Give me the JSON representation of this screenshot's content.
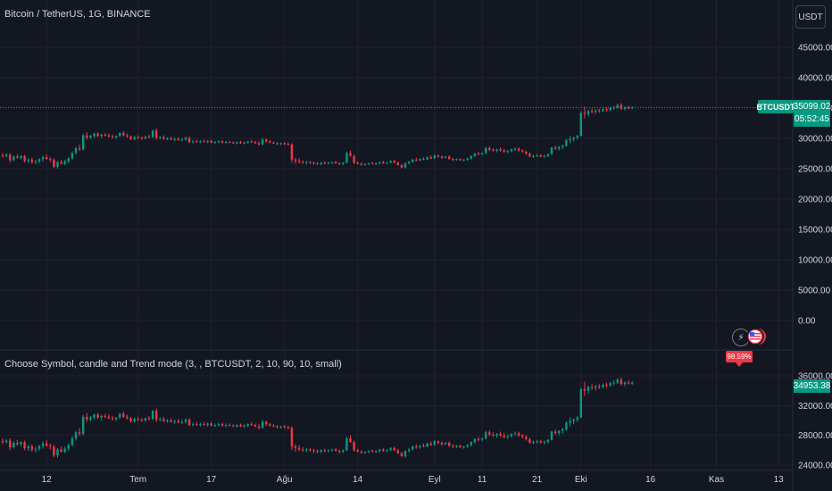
{
  "header": {
    "title": "Bitcoin / TetherUS, 1G, BINANCE",
    "currency_button": "USDT"
  },
  "price_tag": {
    "symbol": "BTCUSDT",
    "price": "35099.02",
    "countdown": "05:52:45"
  },
  "indicator": {
    "title": "Choose Symbol, candle and Trend mode (3, , BTCUSDT, 2, 10, 90, 10, small)",
    "value_tag": "34953.38",
    "percent_label": "98.59%"
  },
  "icons": {
    "flash": "lightning-icon",
    "flag": "us-flag-icon"
  },
  "colors": {
    "background": "#131722",
    "up": "#089981",
    "down": "#f23645",
    "grid": "#1f222c"
  },
  "chart_data": [
    {
      "type": "candlestick",
      "title": "Bitcoin / TetherUS, 1G, BINANCE",
      "ylim": [
        0,
        45000
      ],
      "y_ticks": [
        "45000.00",
        "40000.00",
        "35000.00",
        "30000.00",
        "25000.00",
        "20000.00",
        "15000.00",
        "10000.00",
        "5000.00",
        "0.00"
      ],
      "y_tick_values": [
        45000,
        40000,
        35000,
        30000,
        25000,
        20000,
        15000,
        10000,
        5000,
        0
      ],
      "last_price": 35099.02,
      "grid": true,
      "ohlc": [
        [
          27200,
          27600,
          26800,
          27100
        ],
        [
          27100,
          27500,
          26900,
          27300
        ],
        [
          27300,
          27600,
          26000,
          26400
        ],
        [
          26400,
          27200,
          26200,
          27000
        ],
        [
          27000,
          27400,
          26600,
          26800
        ],
        [
          26800,
          27200,
          26500,
          27100
        ],
        [
          27100,
          27300,
          26000,
          26300
        ],
        [
          26300,
          26700,
          25900,
          26500
        ],
        [
          26500,
          26800,
          25800,
          26100
        ],
        [
          26100,
          26500,
          25700,
          26200
        ],
        [
          26200,
          26700,
          25900,
          26600
        ],
        [
          26600,
          27200,
          26200,
          26900
        ],
        [
          26900,
          27400,
          26500,
          26600
        ],
        [
          26600,
          26900,
          26100,
          26500
        ],
        [
          26500,
          26700,
          25100,
          25300
        ],
        [
          25300,
          26300,
          25000,
          26100
        ],
        [
          26100,
          26500,
          25700,
          25800
        ],
        [
          25800,
          26500,
          25600,
          26200
        ],
        [
          26200,
          26900,
          25900,
          26700
        ],
        [
          26700,
          27900,
          26500,
          27600
        ],
        [
          27600,
          28600,
          27300,
          28400
        ],
        [
          28400,
          29000,
          27900,
          28200
        ],
        [
          28200,
          30800,
          28000,
          30500
        ],
        [
          30500,
          31000,
          29800,
          30100
        ],
        [
          30100,
          30600,
          29900,
          30400
        ],
        [
          30400,
          30900,
          30100,
          30800
        ],
        [
          30800,
          31000,
          30200,
          30400
        ],
        [
          30400,
          30800,
          30000,
          30600
        ],
        [
          30600,
          30900,
          30300,
          30500
        ],
        [
          30500,
          30800,
          30200,
          30300
        ],
        [
          30300,
          30600,
          30000,
          30200
        ],
        [
          30200,
          30500,
          29900,
          30400
        ],
        [
          30400,
          31000,
          30200,
          30900
        ],
        [
          30900,
          31200,
          30300,
          30500
        ],
        [
          30500,
          30800,
          30100,
          30300
        ],
        [
          30300,
          30500,
          29700,
          29900
        ],
        [
          29900,
          30400,
          29700,
          30200
        ],
        [
          30200,
          30500,
          29900,
          30100
        ],
        [
          30100,
          30300,
          29800,
          30000
        ],
        [
          30000,
          30400,
          29800,
          30300
        ],
        [
          30300,
          30600,
          30000,
          30200
        ],
        [
          30200,
          31400,
          30100,
          31300
        ],
        [
          31300,
          31600,
          29800,
          30100
        ],
        [
          30100,
          30400,
          29900,
          30200
        ],
        [
          30200,
          30500,
          29800,
          29900
        ],
        [
          29900,
          30200,
          29700,
          30000
        ],
        [
          30000,
          30300,
          29700,
          29800
        ],
        [
          29800,
          30100,
          29500,
          29900
        ],
        [
          29900,
          30200,
          29600,
          29700
        ],
        [
          29700,
          30100,
          29500,
          29800
        ],
        [
          29800,
          30300,
          29600,
          30100
        ],
        [
          30100,
          30300,
          29200,
          29400
        ],
        [
          29400,
          29700,
          29200,
          29500
        ],
        [
          29500,
          29800,
          29300,
          29400
        ],
        [
          29400,
          29700,
          29200,
          29500
        ],
        [
          29500,
          29800,
          29300,
          29400
        ],
        [
          29400,
          29700,
          29200,
          29600
        ],
        [
          29600,
          29800,
          29200,
          29300
        ],
        [
          29300,
          29600,
          29100,
          29400
        ],
        [
          29400,
          29700,
          29200,
          29500
        ],
        [
          29500,
          29700,
          29200,
          29300
        ],
        [
          29300,
          29600,
          29100,
          29400
        ],
        [
          29400,
          29600,
          29200,
          29300
        ],
        [
          29300,
          29500,
          29100,
          29200
        ],
        [
          29200,
          29500,
          29000,
          29400
        ],
        [
          29400,
          29600,
          29100,
          29200
        ],
        [
          29200,
          29500,
          29000,
          29300
        ],
        [
          29300,
          29600,
          29100,
          29500
        ],
        [
          29500,
          29800,
          29300,
          29400
        ],
        [
          29400,
          29600,
          29100,
          29200
        ],
        [
          29200,
          29500,
          28800,
          29000
        ],
        [
          29000,
          30100,
          28900,
          29800
        ],
        [
          29800,
          30000,
          29300,
          29500
        ],
        [
          29500,
          29700,
          29200,
          29300
        ],
        [
          29300,
          29500,
          29100,
          29200
        ],
        [
          29200,
          29400,
          28900,
          29100
        ],
        [
          29100,
          29300,
          28900,
          29200
        ],
        [
          29200,
          29400,
          28900,
          29100
        ],
        [
          29100,
          29300,
          28800,
          29000
        ],
        [
          29000,
          29200,
          26000,
          26500
        ],
        [
          26500,
          26800,
          25800,
          26300
        ],
        [
          26300,
          26700,
          25900,
          26100
        ],
        [
          26100,
          26400,
          25800,
          26000
        ],
        [
          26000,
          26300,
          25700,
          26100
        ],
        [
          26100,
          26300,
          25800,
          26000
        ],
        [
          26000,
          26200,
          25600,
          25900
        ],
        [
          25900,
          26100,
          25600,
          25800
        ],
        [
          25800,
          26100,
          25600,
          26000
        ],
        [
          26000,
          26200,
          25700,
          25900
        ],
        [
          25900,
          26100,
          25700,
          26000
        ],
        [
          26000,
          26200,
          25800,
          26100
        ],
        [
          26100,
          26300,
          25800,
          25900
        ],
        [
          25900,
          26100,
          25600,
          25800
        ],
        [
          25800,
          26100,
          25600,
          26000
        ],
        [
          26000,
          27800,
          25900,
          27600
        ],
        [
          27600,
          28000,
          27000,
          27100
        ],
        [
          27100,
          27300,
          25800,
          26000
        ],
        [
          26000,
          26200,
          25700,
          25800
        ],
        [
          25800,
          26000,
          25500,
          25700
        ],
        [
          25700,
          25900,
          25500,
          25800
        ],
        [
          25800,
          26000,
          25600,
          25900
        ],
        [
          25900,
          26100,
          25700,
          25800
        ],
        [
          25800,
          26000,
          25600,
          25900
        ],
        [
          25900,
          26200,
          25700,
          26100
        ],
        [
          26100,
          26300,
          25800,
          25900
        ],
        [
          25900,
          26100,
          25700,
          26000
        ],
        [
          26000,
          26400,
          25900,
          26300
        ],
        [
          26300,
          26500,
          25900,
          26000
        ],
        [
          26000,
          26200,
          25500,
          25600
        ],
        [
          25600,
          25800,
          25100,
          25200
        ],
        [
          25200,
          26000,
          25000,
          25900
        ],
        [
          25900,
          26300,
          25700,
          26100
        ],
        [
          26100,
          26600,
          26000,
          26500
        ],
        [
          26500,
          26800,
          26200,
          26400
        ],
        [
          26400,
          26700,
          26200,
          26600
        ],
        [
          26600,
          26900,
          26400,
          26500
        ],
        [
          26500,
          27000,
          26400,
          26900
        ],
        [
          26900,
          27200,
          26600,
          26700
        ],
        [
          26700,
          27400,
          26600,
          27200
        ],
        [
          27200,
          27300,
          26800,
          27000
        ],
        [
          27000,
          27200,
          26600,
          26800
        ],
        [
          26800,
          27100,
          26700,
          27000
        ],
        [
          27000,
          27200,
          26500,
          26600
        ],
        [
          26600,
          26800,
          26300,
          26500
        ],
        [
          26500,
          26700,
          26300,
          26600
        ],
        [
          26600,
          26700,
          26300,
          26400
        ],
        [
          26400,
          26600,
          26200,
          26500
        ],
        [
          26500,
          26800,
          26300,
          26700
        ],
        [
          26700,
          27200,
          26500,
          27100
        ],
        [
          27100,
          27600,
          26900,
          27500
        ],
        [
          27500,
          27800,
          27200,
          27400
        ],
        [
          27400,
          27700,
          27200,
          27600
        ],
        [
          27600,
          28600,
          27400,
          28400
        ],
        [
          28400,
          28700,
          27900,
          28100
        ],
        [
          28100,
          28400,
          27800,
          28000
        ],
        [
          28000,
          28300,
          27700,
          28200
        ],
        [
          28200,
          28500,
          27800,
          28000
        ],
        [
          28000,
          28300,
          27600,
          27800
        ],
        [
          27800,
          28100,
          27500,
          27900
        ],
        [
          27900,
          28300,
          27700,
          28200
        ],
        [
          28200,
          28500,
          27900,
          28300
        ],
        [
          28300,
          28500,
          27800,
          28000
        ],
        [
          28000,
          28200,
          27600,
          27800
        ],
        [
          27800,
          28000,
          27300,
          27500
        ],
        [
          27500,
          27700,
          26900,
          27000
        ],
        [
          27000,
          27300,
          26800,
          27100
        ],
        [
          27100,
          27400,
          26900,
          27200
        ],
        [
          27200,
          27400,
          26900,
          27000
        ],
        [
          27000,
          27300,
          26800,
          27100
        ],
        [
          27100,
          27500,
          26900,
          27400
        ],
        [
          27400,
          28600,
          27300,
          28500
        ],
        [
          28500,
          28800,
          28100,
          28300
        ],
        [
          28300,
          28700,
          28000,
          28600
        ],
        [
          28600,
          29000,
          28200,
          28800
        ],
        [
          28800,
          29900,
          28600,
          29700
        ],
        [
          29700,
          30400,
          29200,
          29900
        ],
        [
          29900,
          30300,
          29500,
          30100
        ],
        [
          30100,
          30600,
          29800,
          30400
        ],
        [
          30400,
          34500,
          30300,
          34200
        ],
        [
          34200,
          35200,
          33300,
          34000
        ],
        [
          34000,
          34700,
          33600,
          34500
        ],
        [
          34500,
          34900,
          34100,
          34400
        ],
        [
          34400,
          34800,
          34000,
          34600
        ],
        [
          34600,
          34900,
          34200,
          34500
        ],
        [
          34500,
          35000,
          34300,
          34800
        ],
        [
          34800,
          35100,
          34400,
          34700
        ],
        [
          34700,
          35200,
          34500,
          35000
        ],
        [
          35000,
          35400,
          34700,
          35100
        ],
        [
          35100,
          35700,
          34900,
          35500
        ],
        [
          35500,
          35800,
          34700,
          34900
        ],
        [
          34900,
          35300,
          34600,
          35100
        ],
        [
          35100,
          35400,
          34800,
          34950
        ],
        [
          34950,
          35300,
          34800,
          35099
        ]
      ]
    },
    {
      "type": "line",
      "title": "Choose Symbol, candle and Trend mode (3, , BTCUSDT, 2, 10, 90, 10, small)",
      "ylim": [
        24000,
        36000
      ],
      "y_ticks": [
        "36000.00",
        "32000.00",
        "28000.00",
        "24000.00"
      ],
      "y_tick_values": [
        36000,
        32000,
        28000,
        24000
      ],
      "last_value": 34953.38
    }
  ],
  "x_axis": {
    "labels": [
      "12",
      "Tem",
      "17",
      "Ağu",
      "14",
      "Eyl",
      "11",
      "21",
      "Eki",
      "16",
      "Kas",
      "13"
    ],
    "label_candle_index": [
      12,
      37,
      57,
      77,
      97,
      118,
      131,
      146,
      158,
      177,
      195,
      212
    ]
  }
}
